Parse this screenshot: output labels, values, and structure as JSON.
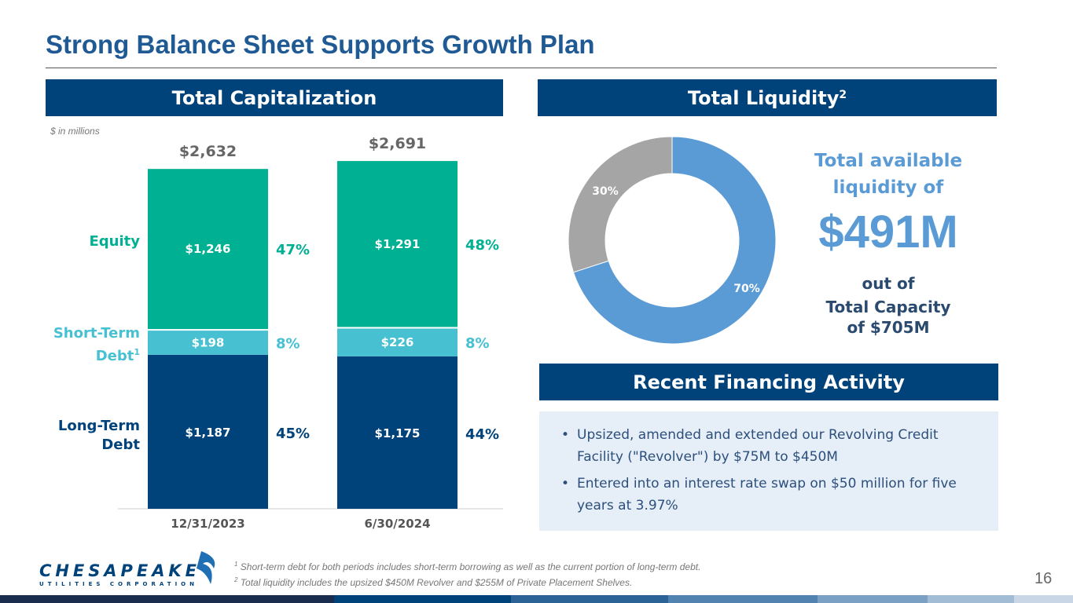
{
  "title": "Strong Balance Sheet Supports Growth Plan",
  "cap": {
    "header": "Total Capitalization",
    "units": "$ in millions"
  },
  "liq": {
    "header": "Total Liquidity",
    "header_sup": "2",
    "line1": "Total available",
    "line2": "liquidity of",
    "amount": "$491M",
    "out_of": "out of",
    "cap1": "Total Capacity",
    "cap2": "of $705M"
  },
  "fin": {
    "header": "Recent Financing Activity",
    "bullets": [
      "Upsized, amended and extended our Revolving Credit Facility (\"Revolver\") by $75M to $450M",
      "Entered into an interest rate swap on $50 million for five years at 3.97%"
    ]
  },
  "labels": {
    "equity": "Equity",
    "short1": "Short-Term",
    "short2": "Debt",
    "short_sup": "1",
    "long1": "Long-Term",
    "long2": "Debt"
  },
  "footnotes": {
    "f1_sup": "1",
    "f1": "Short-term debt for both periods includes short-term borrowing as well as the current portion of long-term debt.",
    "f2_sup": "2",
    "f2": "Total liquidity includes the upsized $450M Revolver and $255M of Private Placement Shelves."
  },
  "logo": {
    "name": "CHESAPEAKE",
    "sub": "UTILITIES CORPORATION"
  },
  "page_number": "16",
  "colors": {
    "navy": "#00427a",
    "teal": "#00b092",
    "light": "#47c1d2",
    "blue": "#5b9bd5",
    "gray": "#a5a5a5"
  },
  "chart_data": [
    {
      "type": "bar",
      "stacked": true,
      "categories": [
        "12/31/2023",
        "6/30/2024"
      ],
      "series": [
        {
          "name": "Long-Term Debt",
          "values": [
            1187,
            1175
          ],
          "labels": [
            "$1,187",
            "$1,175"
          ],
          "pct": [
            "45%",
            "44%"
          ],
          "color": "#00427a"
        },
        {
          "name": "Short-Term Debt",
          "values": [
            198,
            226
          ],
          "labels": [
            "$198",
            "$226"
          ],
          "pct": [
            "8%",
            "8%"
          ],
          "color": "#47c1d2"
        },
        {
          "name": "Equity",
          "values": [
            1246,
            1291
          ],
          "labels": [
            "$1,246",
            "$1,291"
          ],
          "pct": [
            "47%",
            "48%"
          ],
          "color": "#00b092"
        }
      ],
      "totals": [
        "$2,632",
        "$2,691"
      ],
      "ylabel": "$ in millions"
    },
    {
      "type": "pie",
      "donut": true,
      "slices": [
        {
          "name": "Available",
          "value": 70,
          "label": "70%",
          "color": "#5b9bd5"
        },
        {
          "name": "Used",
          "value": 30,
          "label": "30%",
          "color": "#a5a5a5"
        }
      ]
    }
  ]
}
